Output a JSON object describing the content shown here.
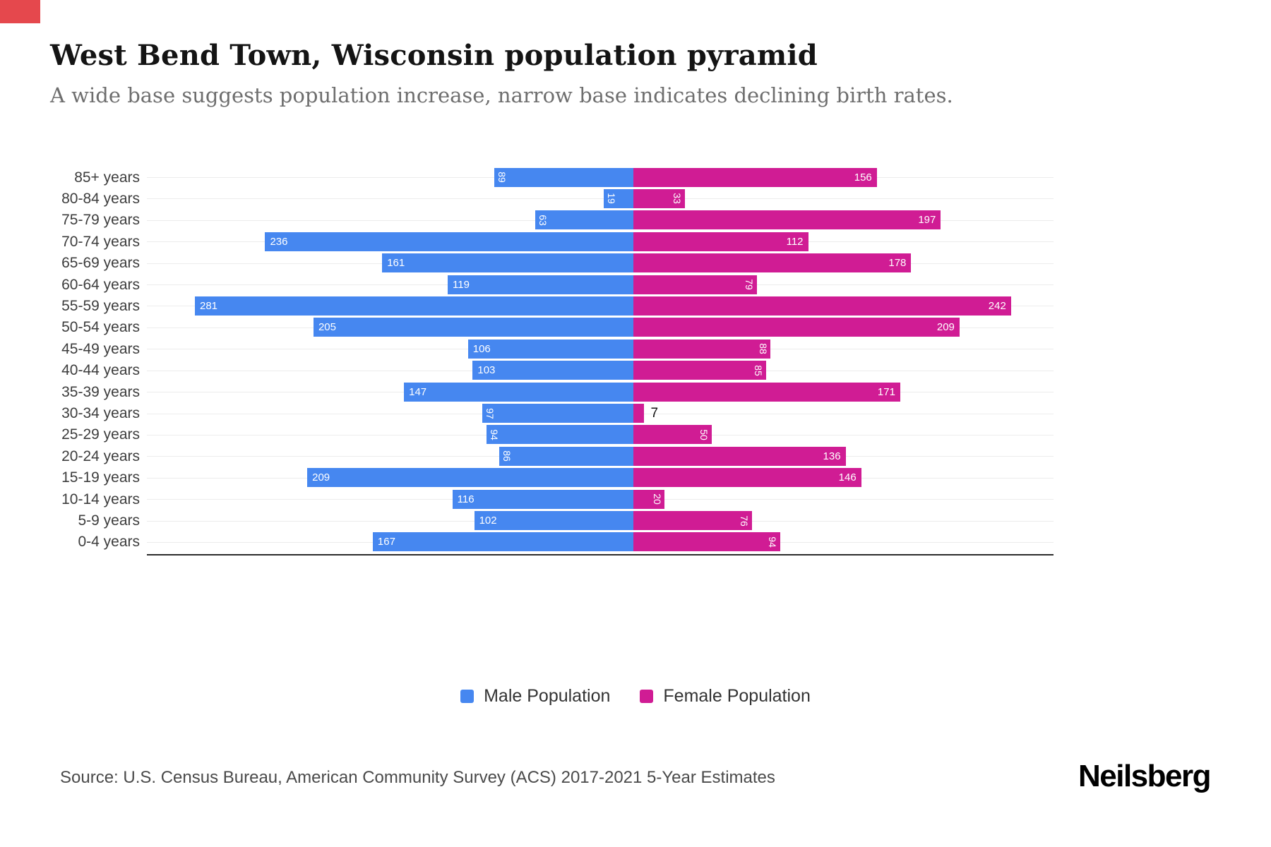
{
  "page": {
    "title": "West Bend Town, Wisconsin population pyramid",
    "subtitle": "A wide base suggests population increase, narrow base indicates declining birth rates.",
    "source": "Source: U.S. Census Bureau, American Community Survey (ACS) 2017-2021 5-Year Estimates",
    "brand": "Neilsberg",
    "accent_red": "#e5484d"
  },
  "chart_data": {
    "type": "bar",
    "variant": "population-pyramid",
    "orientation": "horizontal",
    "title": "West Bend Town, Wisconsin population pyramid",
    "categories": [
      "85+ years",
      "80-84 years",
      "75-79 years",
      "70-74 years",
      "65-69 years",
      "60-64 years",
      "55-59 years",
      "50-54 years",
      "45-49 years",
      "40-44 years",
      "35-39 years",
      "30-34 years",
      "25-29 years",
      "20-24 years",
      "15-19 years",
      "10-14 years",
      "5-9 years",
      "0-4 years"
    ],
    "series": [
      {
        "name": "Male Population",
        "color": "#4687f0",
        "values": [
          89,
          19,
          63,
          236,
          161,
          119,
          281,
          205,
          106,
          103,
          147,
          97,
          94,
          86,
          209,
          116,
          102,
          167
        ]
      },
      {
        "name": "Female Population",
        "color": "#d01c94",
        "values": [
          156,
          33,
          197,
          112,
          178,
          79,
          242,
          209,
          88,
          85,
          171,
          7,
          50,
          136,
          146,
          20,
          76,
          94
        ]
      }
    ],
    "x_max": 281,
    "value_labels": "on-bars, white, rotated vertical when value < 100, dark outside label when bar too small",
    "grid": "horizontal light gridlines per category",
    "legend_position": "bottom-center"
  }
}
